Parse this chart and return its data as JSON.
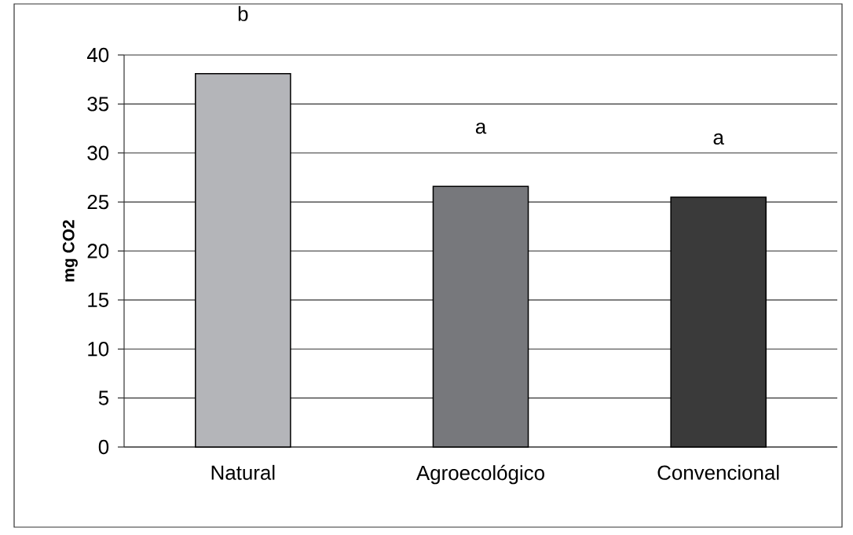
{
  "chart_data": {
    "type": "bar",
    "ylabel": "mg CO2",
    "categories": [
      "Natural",
      "Agroecológico",
      "Convencional"
    ],
    "values": [
      38.1,
      26.6,
      25.5
    ],
    "colors": [
      "#b4b5b9",
      "#77787c",
      "#3a3a3a"
    ],
    "ylim": [
      0,
      40
    ],
    "yticks": [
      0,
      5,
      10,
      15,
      20,
      25,
      30,
      35,
      40
    ],
    "grid": "y",
    "annotations": [
      "b",
      "a",
      "a"
    ]
  }
}
